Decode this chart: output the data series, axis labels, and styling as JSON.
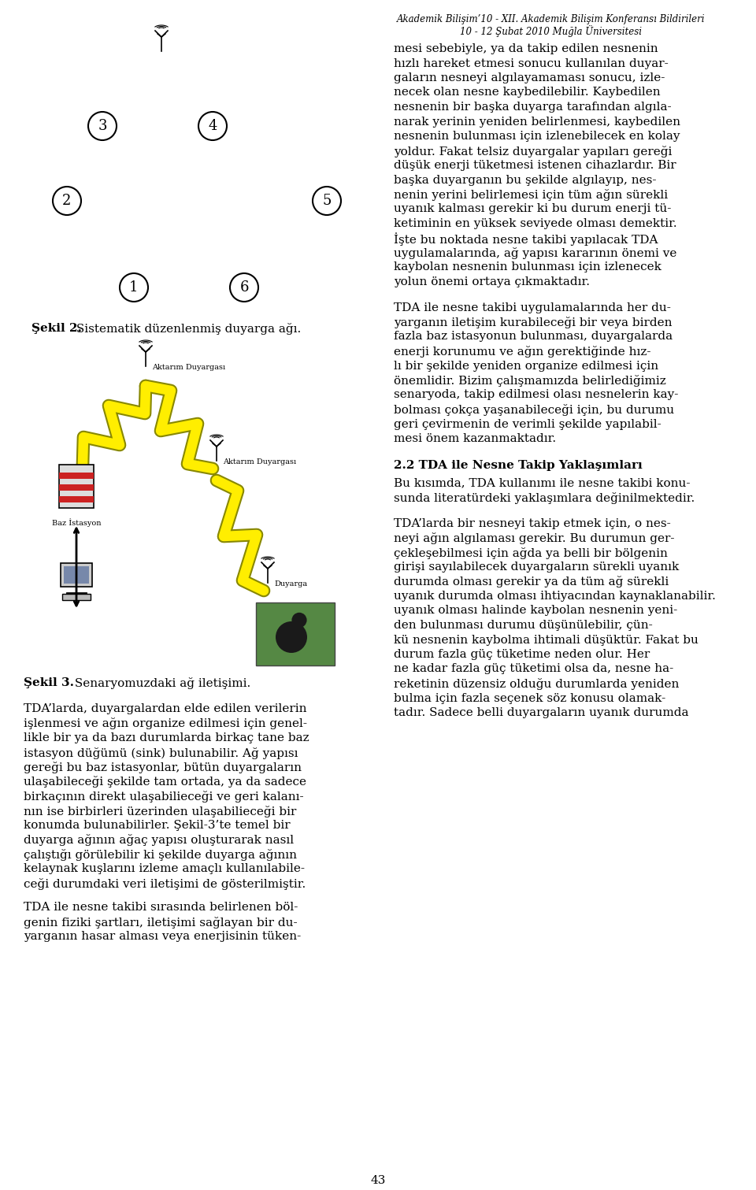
{
  "header_line1": "Akademik Bilişim’10 - XII. Akademik Bilişim Konferansı Bildirileri",
  "header_line2": "10 - 12 Şubat 2010 Muğla Üniversitesi",
  "right_col_text": [
    "mesi sebebiyle, ya da takip edilen nesnenin",
    "hızlı hareket etmesi sonucu kullanılan duyar-",
    "gaların nesneyi algılayamaması sonucu, izle-",
    "necek olan nesne kaybedilebilir. Kaybedilen",
    "nesnenin bir başka duyarga tarafından algıla-",
    "narak yerinin yeniden belirlenmesi, kaybedilen",
    "nesnenin bulunması için izlenebilecek en kolay",
    "yoldur. Fakat telsiz duyargalar yapıları gereği",
    "düşük enerji tüketmesi istenen cihazlardır. Bir",
    "başka duyarganın bu şekilde algılayıp, nes-",
    "nenin yerini belirlemesi için tüm ağın sürekli",
    "uyanık kalması gerekir ki bu durum enerji tü-",
    "ketiminin en yüksek seviyede olması demektir.",
    "İşte bu noktada nesne takibi yapılacak TDA",
    "uygulamalarında, ağ yapısı kararının önemi ve",
    "kaybolan nesnenin bulunması için izlenecek",
    "yolun önemi ortaya çıkmaktadır."
  ],
  "right_col_text2": [
    "TDA ile nesne takibi uygulamalarında her du-",
    "yarganın iletişim kurabileceği bir veya birden",
    "fazla baz istasyonun bulunması, duyargalarda",
    "enerji korunumu ve ağın gerektiğinde hız-",
    "lı bir şekilde yeniden organize edilmesi için",
    "önemlidir. Bizim çalışmamızda belirlediğimiz",
    "senaryoda, takip edilmesi olası nesnelerin kay-",
    "bolması çokça yaşanabileceği için, bu durumu",
    "geri çevirmenin de verimli şekilde yapılabil-",
    "mesi önem kazanmaktadır."
  ],
  "section_header": "2.2 TDA ile Nesne Takip Yaklaşımları",
  "right_col_text3": [
    "Bu kısımda, TDA kullanımı ile nesne takibi konu-",
    "sunda literatürdeki yaklaşımlara değinilmektedir."
  ],
  "right_col_text4": [
    "TDA’larda bir nesneyi takip etmek için, o nes-",
    "neyi ağın algılaması gerekir. Bu durumun ger-",
    "çekleşebilmesi için ağda ya belli bir bölgenin",
    "girişi sayılabilecek duyargaların sürekli uyanık",
    "durumda olması gerekir ya da tüm ağ sürekli",
    "uyanık durumda olması ihtiyacından kaynaklanabilir.",
    "uyanık olması halinde kaybolan nesnenin yeni-",
    "den bulunması durumu düşünülebilir, çün-",
    "kü nesnenin kaybolma ihtimali düşüktür. Fakat bu",
    "durum fazla güç tüketime neden olur. Her",
    "ne kadar fazla güç tüketimi olsa da, nesne ha-",
    "reketinin düzensiz olduğu durumlarda yeniden",
    "bulma için fazla seçenek söz konusu olamak-",
    "tadır. Sadece belli duyargaların uyanık durumda"
  ],
  "page_number": "43",
  "fig2_caption_bold": "Şekil 2.",
  "fig2_caption_rest": " Sistematik düzenlenmiş duyarga ağı.",
  "fig3_caption_bold": "Şekil 3.",
  "fig3_caption_rest": " Senaryomuzdaki ağ iletişimi.",
  "left_col_text": [
    "TDA’larda, duyargalardan elde edilen verilerin",
    "işlenmesi ve ağın organize edilmesi için genel-",
    "likle bir ya da bazı durumlarda birkaç tane baz",
    "istasyon düğümü (sink) bulunabilir. Ağ yapısı",
    "gereği bu baz istasyonlar, bütün duyargaların",
    "ulaşabileceği şekilde tam ortada, ya da sadece",
    "birkaçının direkt ulaşabilieceği ve geri kalanı-",
    "nın ise birbirleri üzerinden ulaşabilieceği bir",
    "konumda bulunabilirler. Şekil-3’te temel bir",
    "duyarga ağının ağaç yapısı oluşturarak nasıl",
    "çalıştığı görülebilir ki şekilde duyarga ağının",
    "kelaynak kuşlarını izleme amaçlı kullanılabile-",
    "ceği durumdaki veri iletişimi de gösterilmiştir."
  ],
  "left_col_text2": [
    "TDA ile nesne takibi sırasında belirlenen böl-",
    "genin fiziki şartları, iletişimi sağlayan bir du-",
    "yarganın hasar alması veya enerjisinin tüken-"
  ]
}
